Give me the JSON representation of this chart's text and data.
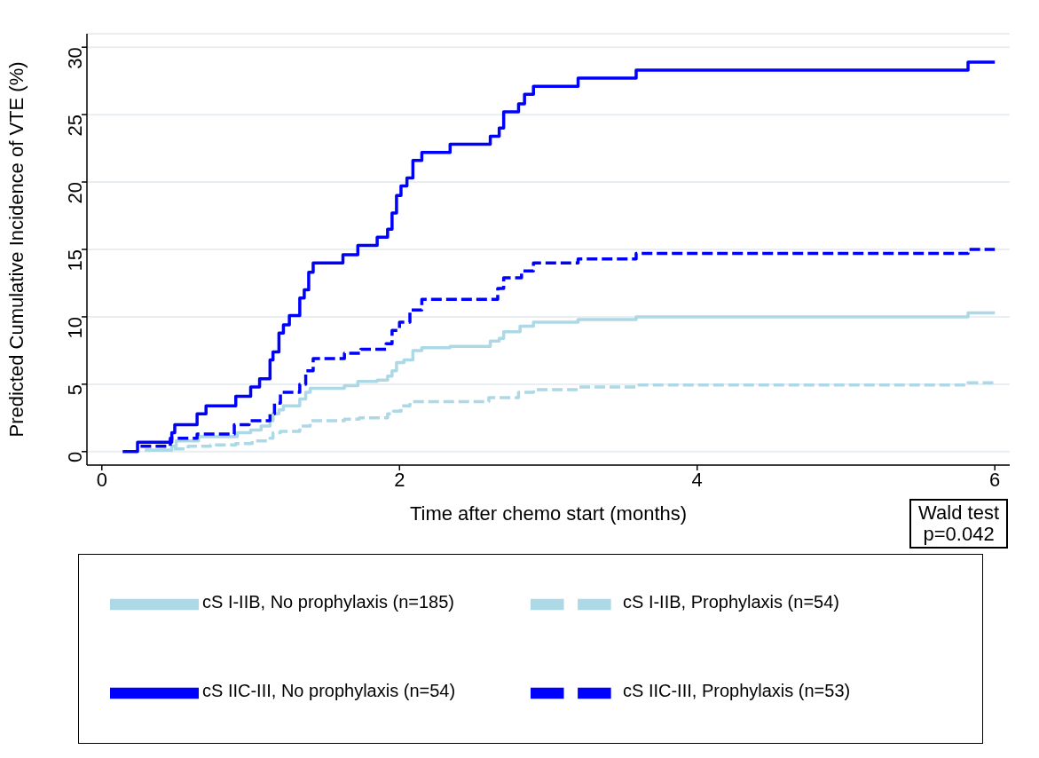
{
  "chart_data": {
    "type": "step",
    "xlabel": "Time after chemo start (months)",
    "ylabel": "Predicted Cumulative Incidence of VTE (%)",
    "xlim": [
      -0.1,
      6.1
    ],
    "xticks": [
      0,
      2,
      4,
      6
    ],
    "ylim": [
      -1,
      31
    ],
    "yticks": [
      0,
      5,
      10,
      15,
      20,
      25,
      30
    ],
    "grid": "y",
    "legend": "bottom",
    "marker": "none",
    "annotations": [
      "Wald test\np=0.042"
    ],
    "series": [
      {
        "name": "cS I-IIB, No prophylaxis (n=185)",
        "color": "#add8e6",
        "line_style": "solid",
        "x": [
          0.29,
          0.47,
          0.5,
          0.65,
          0.91,
          1.0,
          1.07,
          1.13,
          1.15,
          1.19,
          1.22,
          1.33,
          1.37,
          1.4,
          1.63,
          1.72,
          1.85,
          1.92,
          1.95,
          1.98,
          2.03,
          2.09,
          2.15,
          2.34,
          2.61,
          2.67,
          2.7,
          2.81,
          2.9,
          3.2,
          3.59,
          5.82,
          6.0
        ],
        "values": [
          0.1,
          0.4,
          0.8,
          1.1,
          1.4,
          1.6,
          1.9,
          2.3,
          2.8,
          3.1,
          3.4,
          3.9,
          4.4,
          4.7,
          4.9,
          5.2,
          5.3,
          5.6,
          6.0,
          6.6,
          6.8,
          7.5,
          7.7,
          7.8,
          8.2,
          8.4,
          8.9,
          9.3,
          9.6,
          9.8,
          10.0,
          10.3,
          10.3
        ]
      },
      {
        "name": "cS I-IIB, Prophylaxis (n=54)",
        "color": "#add8e6",
        "line_style": "dashed",
        "x": [
          0.29,
          0.47,
          0.58,
          0.73,
          0.9,
          1.01,
          1.13,
          1.15,
          1.2,
          1.33,
          1.4,
          1.63,
          1.73,
          1.92,
          1.96,
          2.01,
          2.07,
          2.6,
          2.8,
          2.9,
          3.2,
          3.59,
          5.82,
          6.0
        ],
        "values": [
          0.1,
          0.2,
          0.4,
          0.5,
          0.6,
          0.8,
          1.0,
          1.4,
          1.5,
          1.9,
          2.3,
          2.4,
          2.5,
          2.8,
          3.0,
          3.4,
          3.7,
          4.0,
          4.4,
          4.6,
          4.8,
          4.95,
          5.1,
          5.1
        ]
      },
      {
        "name": "cS IIC-III, No prophylaxis (n=54)",
        "color": "#0000ff",
        "line_style": "solid",
        "x": [
          0.14,
          0.24,
          0.47,
          0.49,
          0.64,
          0.7,
          0.9,
          1.0,
          1.06,
          1.13,
          1.15,
          1.19,
          1.22,
          1.26,
          1.33,
          1.36,
          1.39,
          1.42,
          1.62,
          1.72,
          1.85,
          1.92,
          1.95,
          1.98,
          2.01,
          2.05,
          2.09,
          2.15,
          2.34,
          2.61,
          2.67,
          2.7,
          2.8,
          2.84,
          2.9,
          3.2,
          3.59,
          5.82,
          6.0
        ],
        "values": [
          0,
          0.7,
          1.4,
          2.0,
          2.8,
          3.4,
          4.1,
          4.8,
          5.4,
          6.8,
          7.4,
          8.8,
          9.4,
          10.1,
          11.4,
          12.0,
          13.3,
          14.0,
          14.6,
          15.3,
          15.9,
          16.5,
          17.7,
          19.0,
          19.7,
          20.3,
          21.6,
          22.2,
          22.8,
          23.4,
          24.0,
          25.2,
          25.8,
          26.5,
          27.1,
          27.7,
          28.3,
          28.9,
          28.9
        ]
      },
      {
        "name": "cS IIC-III, Prophylaxis (n=53)",
        "color": "#0000ff",
        "line_style": "dashed",
        "x": [
          0.26,
          0.46,
          0.64,
          0.89,
          0.99,
          1.13,
          1.16,
          1.2,
          1.33,
          1.37,
          1.42,
          1.63,
          1.74,
          1.91,
          1.95,
          2.0,
          2.07,
          2.15,
          2.66,
          2.7,
          2.82,
          2.9,
          3.2,
          3.59,
          5.82,
          6.0
        ],
        "values": [
          0.4,
          1.0,
          1.3,
          2.0,
          2.3,
          2.8,
          3.6,
          4.4,
          5.0,
          6.0,
          6.9,
          7.3,
          7.6,
          8.0,
          9.0,
          9.6,
          10.5,
          11.3,
          12.1,
          12.9,
          13.4,
          14.0,
          14.3,
          14.7,
          15.0,
          15.0
        ]
      }
    ]
  }
}
